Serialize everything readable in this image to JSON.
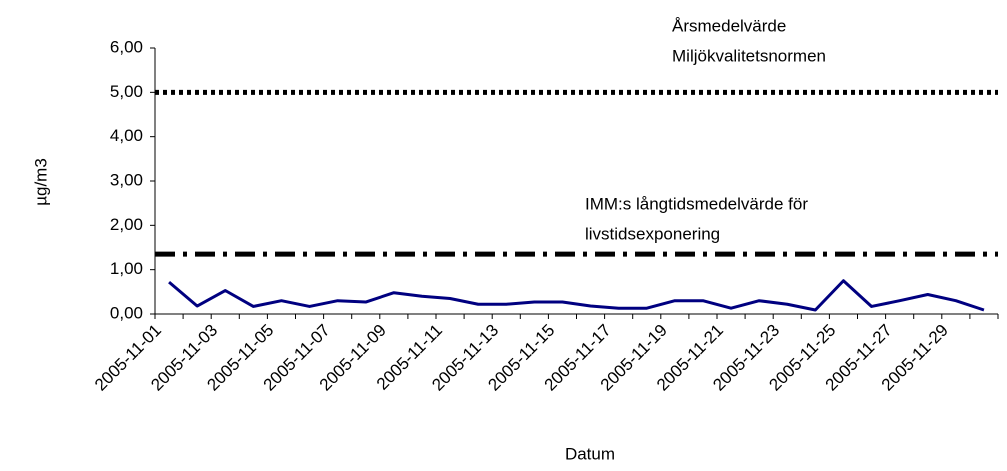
{
  "chart_data": {
    "type": "line",
    "xlabel": "Datum",
    "ylabel": "µg/m3",
    "categories": [
      "2005-11-01",
      null,
      "2005-11-03",
      null,
      "2005-11-05",
      null,
      "2005-11-07",
      null,
      "2005-11-09",
      null,
      "2005-11-11",
      null,
      "2005-11-13",
      null,
      "2005-11-15",
      null,
      "2005-11-17",
      null,
      "2005-11-19",
      null,
      "2005-11-21",
      null,
      "2005-11-23",
      null,
      "2005-11-25",
      null,
      "2005-11-27",
      null,
      "2005-11-29",
      null
    ],
    "series": [
      {
        "color": "#000080",
        "values": [
          0.72,
          0.18,
          0.53,
          0.17,
          0.3,
          0.17,
          0.3,
          0.27,
          0.48,
          0.4,
          0.35,
          0.22,
          0.22,
          0.27,
          0.27,
          0.18,
          0.13,
          0.13,
          0.3,
          0.3,
          0.13,
          0.3,
          0.22,
          0.09,
          0.75,
          0.17,
          0.3,
          0.44,
          0.3,
          0.09
        ]
      }
    ],
    "ylim": [
      0,
      6
    ],
    "yticks": [
      {
        "value": 0,
        "label": "0,00"
      },
      {
        "value": 1,
        "label": "1,00"
      },
      {
        "value": 2,
        "label": "2,00"
      },
      {
        "value": 3,
        "label": "3,00"
      },
      {
        "value": 4,
        "label": "4,00"
      },
      {
        "value": 5,
        "label": "5,00"
      },
      {
        "value": 6,
        "label": "6,00"
      }
    ],
    "reference_lines": [
      {
        "value": 5,
        "style": "dotted",
        "label": [
          "Årsmedelvärde",
          "Miljökvalitetsnormen"
        ]
      },
      {
        "value": 1.35,
        "style": "dashdot",
        "label": [
          "IMM:s långtidsmedelvärde för",
          "livstidsexponering"
        ]
      }
    ]
  }
}
